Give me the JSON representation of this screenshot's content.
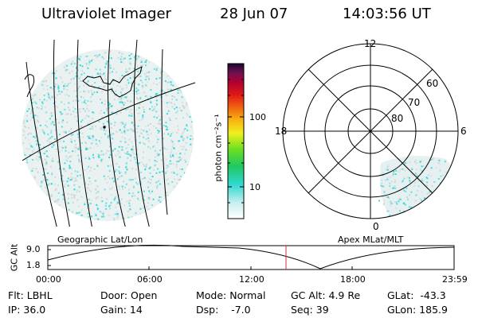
{
  "header": {
    "instrument": "Ultraviolet Imager",
    "date": "28 Jun 07",
    "time": "14:03:56 UT"
  },
  "colorbar": {
    "unit_label": "photon cm⁻²s⁻¹",
    "ticks": [
      "100",
      "10"
    ]
  },
  "polar_plot": {
    "mlt_labels": [
      "12",
      "18",
      "6",
      "0"
    ],
    "lat_labels": [
      "60",
      "70",
      "80"
    ]
  },
  "altitude_panel": {
    "ylabel": "GC Alt",
    "yticks": [
      "9.0",
      "1.8"
    ],
    "left_title": "Geographic Lat/Lon",
    "right_title": "Apex MLat/MLT",
    "time_ticks": [
      "00:00",
      "06:00",
      "12:00",
      "18:00",
      "23:59"
    ],
    "current_time_hours": 14.07
  },
  "footer": {
    "flt": "Flt: LBHL",
    "ip": "IP: 36.0",
    "door": "Door: Open",
    "gain": "Gain: 14",
    "mode": "Mode: Normal",
    "dsp": "Dsp:    -7.0",
    "gc_alt": "GC Alt: 4.9 Re",
    "seq": "Seq: 39",
    "glat": "GLat:  -43.3",
    "glon": "GLon: 185.9"
  },
  "colors": {
    "speckle_cyan": "#22d8d8",
    "speckle_grey": "#c9d3d6",
    "current_time_line": "#d03030"
  }
}
